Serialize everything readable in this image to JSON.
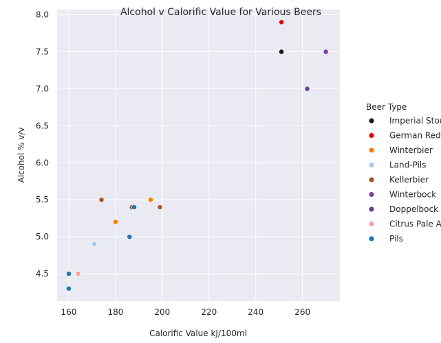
{
  "chart_data": {
    "type": "scatter",
    "title": "Alcohol v Calorific Value for Various Beers",
    "xlabel": "Calorific Value kJ/100ml",
    "ylabel": "Alcohol % v/v",
    "xlim": [
      155,
      276
    ],
    "ylim": [
      4.13,
      8.07
    ],
    "xticks": [
      160,
      180,
      200,
      220,
      240,
      260
    ],
    "yticks": [
      4.5,
      5.0,
      5.5,
      6.0,
      6.5,
      7.0,
      7.5,
      8.0
    ],
    "xtick_labels": [
      "160",
      "180",
      "200",
      "220",
      "240",
      "260"
    ],
    "ytick_labels": [
      "4.5",
      "5.0",
      "5.5",
      "6.0",
      "6.5",
      "7.0",
      "7.5",
      "8.0"
    ],
    "grid": true,
    "legend_title": "Beer Type",
    "legend_position": "right",
    "series": [
      {
        "name": "Imperial Stout",
        "color": "#1a1a1a",
        "points": [
          [
            251,
            7.5
          ]
        ]
      },
      {
        "name": "German Red",
        "color": "#e8000b",
        "points": [
          [
            251,
            7.9
          ]
        ]
      },
      {
        "name": "Winterbier",
        "color": "#ff7c00",
        "points": [
          [
            180,
            5.2
          ],
          [
            195,
            5.5
          ]
        ]
      },
      {
        "name": "Land-Pils",
        "color": "#a1c9f4",
        "points": [
          [
            171,
            4.9
          ]
        ]
      },
      {
        "name": "Kellerbier",
        "color": "#a65628",
        "points": [
          [
            174,
            5.5
          ],
          [
            187,
            5.4
          ],
          [
            199,
            5.4
          ]
        ]
      },
      {
        "name": "Winterbock",
        "color": "#7e3fa8",
        "points": [
          [
            270,
            7.5
          ]
        ]
      },
      {
        "name": "Doppelbock",
        "color": "#6a3d9a",
        "points": [
          [
            262,
            7.0
          ]
        ]
      },
      {
        "name": "Citrus Pale Ale",
        "color": "#ff9f9b",
        "points": [
          [
            164,
            4.5
          ]
        ]
      },
      {
        "name": "Pils",
        "color": "#1f77b4",
        "points": [
          [
            160,
            4.5
          ],
          [
            160,
            4.3
          ],
          [
            186,
            5.0
          ],
          [
            188,
            5.4
          ]
        ]
      }
    ]
  }
}
